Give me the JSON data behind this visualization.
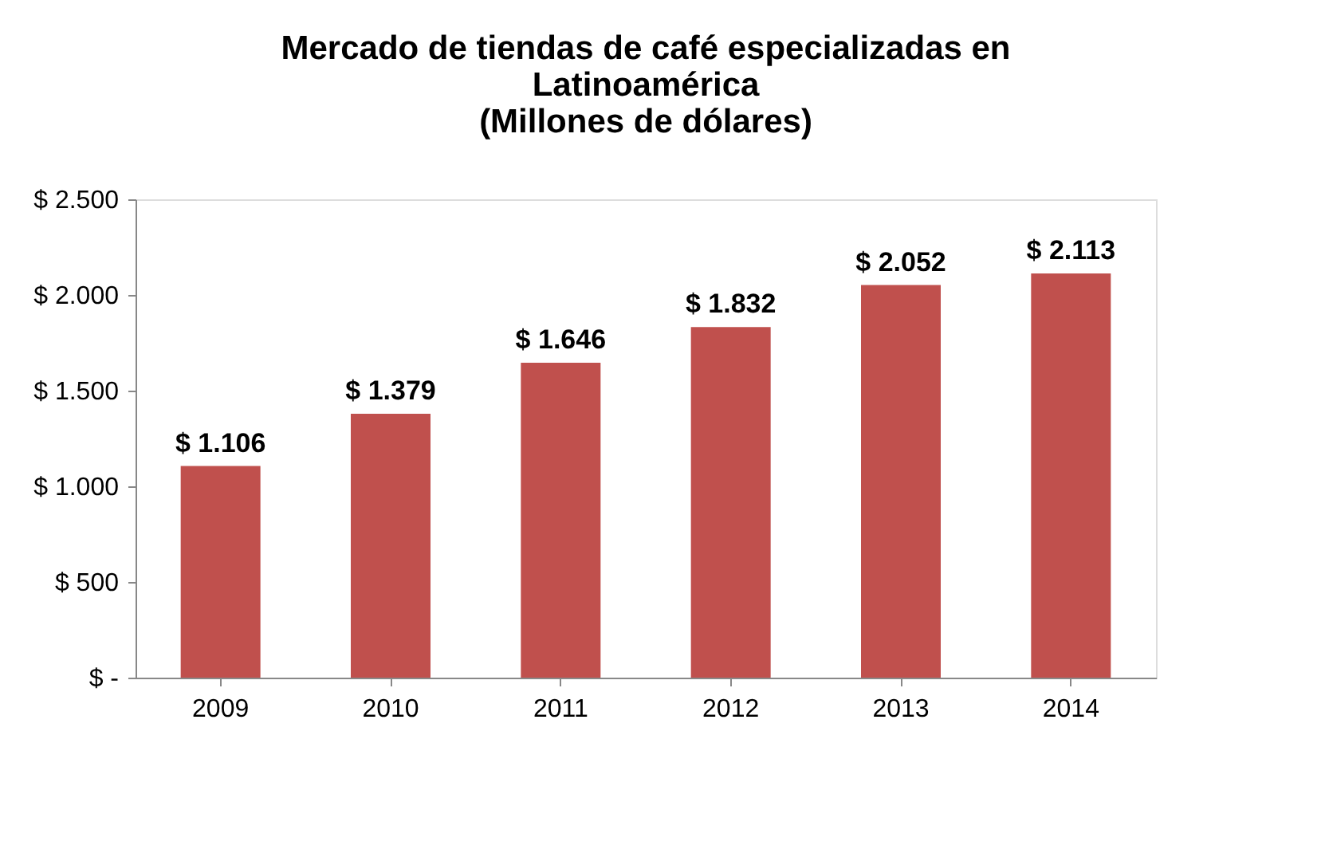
{
  "chart_data": {
    "type": "bar",
    "title": [
      "Mercado de tiendas de café especializadas  en",
      "Latinoamérica",
      "(Millones de dólares)"
    ],
    "categories": [
      "2009",
      "2010",
      "2011",
      "2012",
      "2013",
      "2014"
    ],
    "values": [
      1106,
      1379,
      1646,
      1832,
      2052,
      2113
    ],
    "value_labels": [
      "$ 1.106",
      "$ 1.379",
      "$ 1.646",
      "$ 1.832",
      "$ 2.052",
      "$ 2.113"
    ],
    "color": "#c0504d",
    "ylim": [
      0,
      2500
    ],
    "yticks": [
      {
        "value": 0,
        "label": "$ -"
      },
      {
        "value": 500,
        "label": "$ 500"
      },
      {
        "value": 1000,
        "label": "$ 1.000"
      },
      {
        "value": 1500,
        "label": "$ 1.500"
      },
      {
        "value": 2000,
        "label": "$ 2.000"
      },
      {
        "value": 2500,
        "label": "$ 2.500"
      }
    ],
    "grid": false
  }
}
